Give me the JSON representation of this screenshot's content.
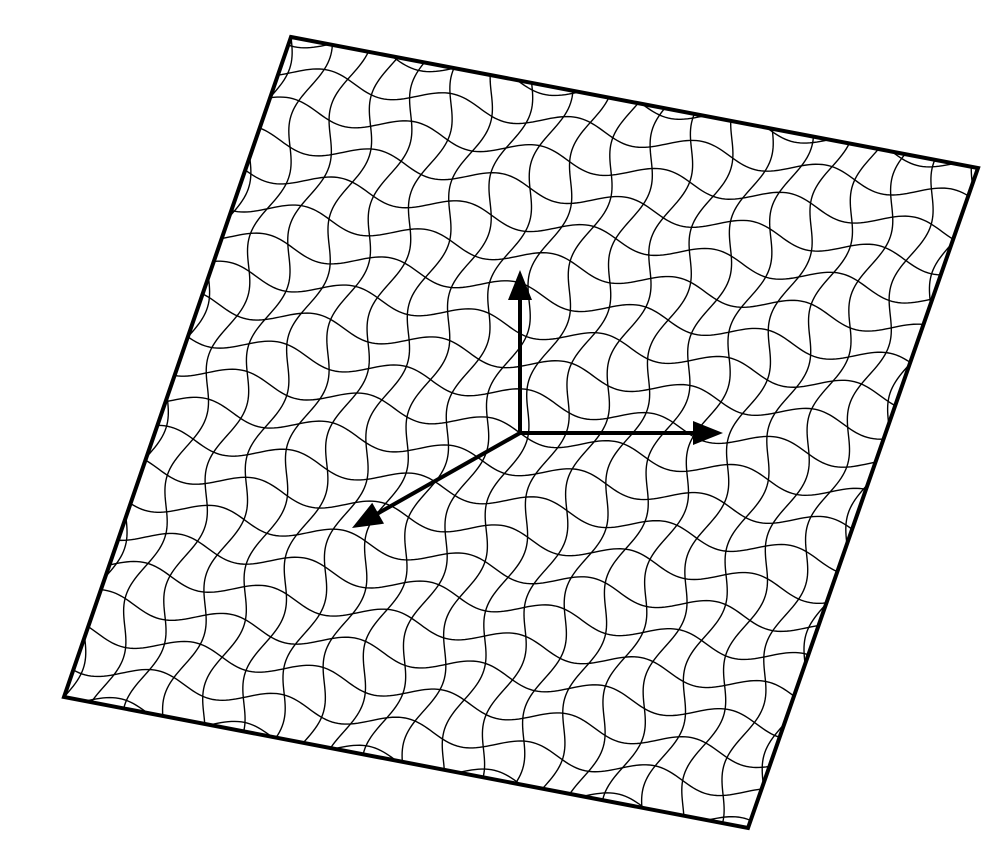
{
  "diagram": {
    "type": "wavy-mesh-plane-with-coordinate-axes",
    "colors": {
      "background": "#ffffff",
      "stroke": "#000000"
    },
    "mesh": {
      "families": 2,
      "lines_per_family": 20,
      "wave_periods_per_line": 5.5
    },
    "axes": [
      {
        "name": "vertical-axis",
        "direction": "up"
      },
      {
        "name": "horizontal-axis",
        "direction": "right"
      },
      {
        "name": "depth-axis",
        "direction": "lower-left"
      }
    ],
    "icons": [
      "arrow-head-icon"
    ]
  }
}
